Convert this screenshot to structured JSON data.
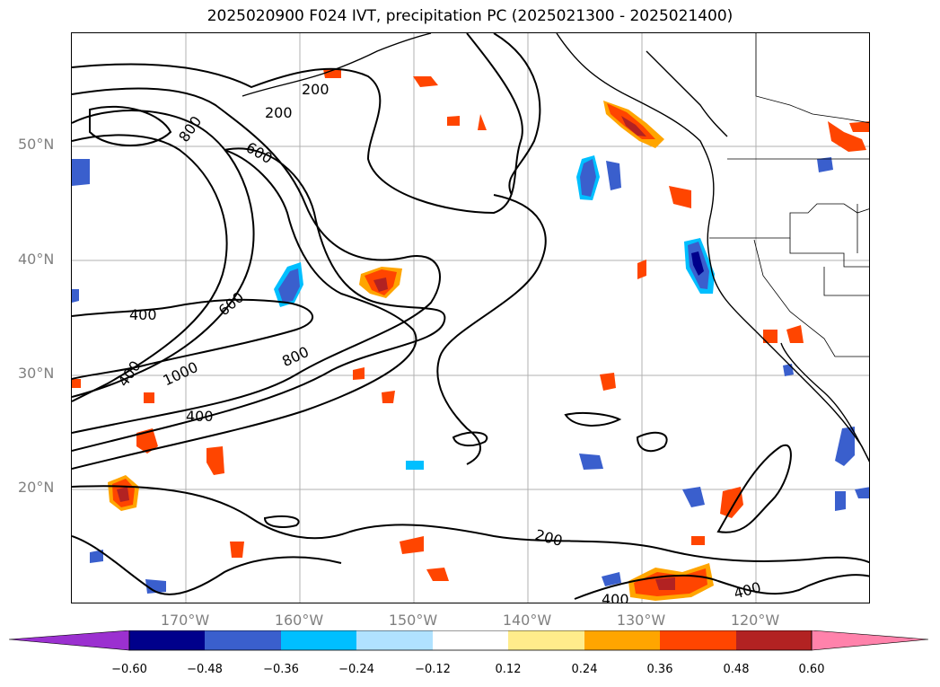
{
  "title": "2025020900 F024 IVT, precipitation PC (2025021300 - 2025021400)",
  "map": {
    "lat_labels": [
      {
        "text": "50°N",
        "lat": 50
      },
      {
        "text": "40°N",
        "lat": 40
      },
      {
        "text": "30°N",
        "lat": 30
      },
      {
        "text": "20°N",
        "lat": 20
      }
    ],
    "lon_labels": [
      {
        "text": "170°W",
        "lon": -170
      },
      {
        "text": "160°W",
        "lon": -160
      },
      {
        "text": "150°W",
        "lon": -150
      },
      {
        "text": "140°W",
        "lon": -140
      },
      {
        "text": "130°W",
        "lon": -130
      },
      {
        "text": "120°W",
        "lon": -120
      }
    ],
    "extent": {
      "lon_min": -180,
      "lon_max": -110,
      "lat_min": 10,
      "lat_max": 60
    },
    "contour_labels": [
      "200",
      "200",
      "800",
      "600",
      "600",
      "400",
      "400",
      "1000",
      "800",
      "400",
      "200",
      "400",
      "400"
    ],
    "contour_color": "#000000",
    "grid_color": "#b0b0b0"
  },
  "colorbar": {
    "tick_labels": [
      "−0.60",
      "−0.48",
      "−0.36",
      "−0.24",
      "−0.12",
      "0.12",
      "0.24",
      "0.36",
      "0.48",
      "0.60"
    ],
    "colors": [
      "#9b30d0",
      "#00008b",
      "#3a5fcd",
      "#00bfff",
      "#b0e2ff",
      "#ffffff",
      "#ffec8b",
      "#ffa500",
      "#ff4500",
      "#b22222",
      "#ff82ab"
    ]
  }
}
